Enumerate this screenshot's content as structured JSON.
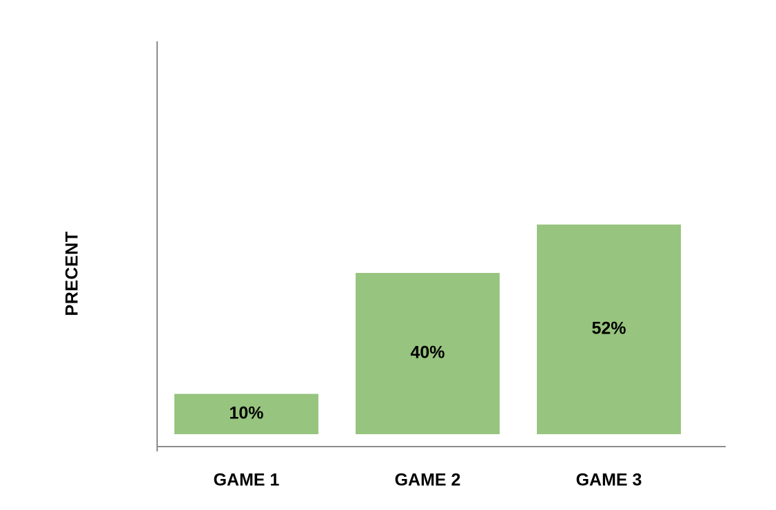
{
  "chart_data": {
    "type": "bar",
    "categories": [
      "GAME 1",
      "GAME 2",
      "GAME 3"
    ],
    "values": [
      10,
      40,
      52
    ],
    "data_labels": [
      "10%",
      "40%",
      "52%"
    ],
    "title": "",
    "xlabel": "",
    "ylabel": "PRECENT",
    "ylim": [
      0,
      100
    ],
    "grid": false,
    "legend": "none",
    "colors": {
      "bar": "#97c47e",
      "axis": "#8c8c8c",
      "text": "#000000"
    }
  }
}
